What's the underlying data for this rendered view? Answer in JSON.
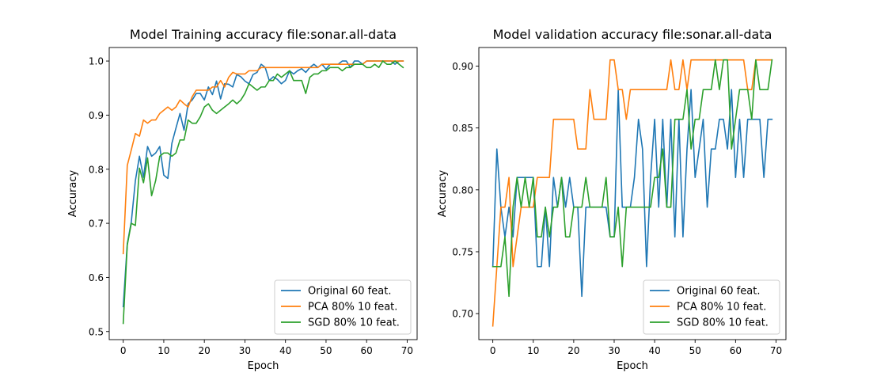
{
  "chart_data": [
    {
      "type": "line",
      "title": "Model Training accuracy file:sonar.all-data",
      "xlabel": "Epoch",
      "ylabel": "Accuracy",
      "xlim": [
        -3.45,
        72.45
      ],
      "ylim": [
        0.485,
        1.025
      ],
      "xticks": [
        0,
        10,
        20,
        30,
        40,
        50,
        60,
        70
      ],
      "yticks": [
        0.5,
        0.6,
        0.7,
        0.8,
        0.9,
        1.0
      ],
      "ytick_labels": [
        "0.5",
        "0.6",
        "0.7",
        "0.8",
        "0.9",
        "1.0"
      ],
      "legend_position": "lower-right",
      "series": [
        {
          "name": "Original 60 feat.",
          "color": "#1f77b4",
          "values": [
            0.546,
            0.662,
            0.703,
            0.779,
            0.824,
            0.785,
            0.842,
            0.824,
            0.83,
            0.842,
            0.789,
            0.783,
            0.848,
            0.876,
            0.903,
            0.872,
            0.921,
            0.928,
            0.94,
            0.94,
            0.928,
            0.952,
            0.938,
            0.963,
            0.93,
            0.958,
            0.957,
            0.952,
            0.975,
            0.971,
            0.963,
            0.958,
            0.975,
            0.979,
            0.994,
            0.988,
            0.964,
            0.971,
            0.966,
            0.958,
            0.964,
            0.982,
            0.976,
            0.982,
            0.986,
            0.979,
            0.988,
            0.994,
            0.988,
            0.994,
            0.985,
            0.994,
            0.994,
            0.994,
            1.0,
            1.0,
            0.988,
            1.0,
            1.0,
            0.994,
            1.0,
            1.0,
            1.0,
            1.0,
            1.0,
            1.0,
            1.0,
            0.994,
            1.0,
            1.0
          ]
        },
        {
          "name": "PCA 80% 10 feat.",
          "color": "#ff7f0e",
          "values": [
            0.644,
            0.807,
            0.836,
            0.866,
            0.861,
            0.891,
            0.885,
            0.891,
            0.891,
            0.903,
            0.909,
            0.915,
            0.909,
            0.915,
            0.928,
            0.921,
            0.915,
            0.934,
            0.946,
            0.946,
            0.946,
            0.946,
            0.952,
            0.952,
            0.964,
            0.952,
            0.97,
            0.979,
            0.976,
            0.976,
            0.976,
            0.982,
            0.982,
            0.982,
            0.988,
            0.988,
            0.988,
            0.988,
            0.988,
            0.988,
            0.988,
            0.988,
            0.988,
            0.988,
            0.988,
            0.988,
            0.988,
            0.988,
            0.988,
            0.994,
            0.994,
            0.994,
            0.994,
            0.994,
            0.994,
            0.994,
            0.994,
            0.994,
            0.994,
            0.994,
            1.0,
            1.0,
            1.0,
            1.0,
            1.0,
            1.0,
            1.0,
            1.0,
            1.0,
            1.0
          ]
        },
        {
          "name": "SGD 80% 10 feat.",
          "color": "#2ca02c",
          "values": [
            0.515,
            0.66,
            0.7,
            0.696,
            0.802,
            0.775,
            0.821,
            0.751,
            0.779,
            0.824,
            0.83,
            0.83,
            0.824,
            0.83,
            0.854,
            0.854,
            0.891,
            0.885,
            0.885,
            0.897,
            0.915,
            0.921,
            0.909,
            0.903,
            0.909,
            0.915,
            0.921,
            0.928,
            0.921,
            0.928,
            0.94,
            0.958,
            0.952,
            0.946,
            0.952,
            0.952,
            0.964,
            0.964,
            0.976,
            0.97,
            0.976,
            0.982,
            0.964,
            0.964,
            0.964,
            0.94,
            0.97,
            0.976,
            0.976,
            0.982,
            0.982,
            0.988,
            0.988,
            0.988,
            0.982,
            0.988,
            0.988,
            0.994,
            0.994,
            0.994,
            0.988,
            0.988,
            0.994,
            0.988,
            1.0,
            0.994,
            0.994,
            1.0,
            0.994,
            0.988
          ]
        }
      ]
    },
    {
      "type": "line",
      "title": "Model validation accuracy file:sonar.all-data",
      "xlabel": "Epoch",
      "ylabel": "Accuracy",
      "xlim": [
        -3.45,
        72.45
      ],
      "ylim": [
        0.679,
        0.915
      ],
      "xticks": [
        0,
        10,
        20,
        30,
        40,
        50,
        60,
        70
      ],
      "yticks": [
        0.7,
        0.75,
        0.8,
        0.85,
        0.9
      ],
      "ytick_labels": [
        "0.70",
        "0.75",
        "0.80",
        "0.85",
        "0.90"
      ],
      "legend_position": "lower-right",
      "series": [
        {
          "name": "Original 60 feat.",
          "color": "#1f77b4",
          "values": [
            0.738,
            0.833,
            0.786,
            0.762,
            0.786,
            0.762,
            0.81,
            0.81,
            0.81,
            0.81,
            0.81,
            0.738,
            0.738,
            0.786,
            0.738,
            0.81,
            0.786,
            0.81,
            0.786,
            0.81,
            0.786,
            0.786,
            0.714,
            0.786,
            0.786,
            0.786,
            0.786,
            0.786,
            0.786,
            0.762,
            0.762,
            0.881,
            0.786,
            0.786,
            0.786,
            0.81,
            0.857,
            0.833,
            0.738,
            0.81,
            0.857,
            0.786,
            0.857,
            0.786,
            0.857,
            0.762,
            0.857,
            0.762,
            0.833,
            0.881,
            0.81,
            0.833,
            0.857,
            0.786,
            0.833,
            0.833,
            0.857,
            0.857,
            0.833,
            0.881,
            0.81,
            0.857,
            0.81,
            0.857,
            0.857,
            0.857,
            0.857,
            0.81,
            0.857,
            0.857
          ]
        },
        {
          "name": "PCA 80% 10 feat.",
          "color": "#ff7f0e",
          "values": [
            0.69,
            0.738,
            0.786,
            0.786,
            0.81,
            0.738,
            0.762,
            0.786,
            0.786,
            0.786,
            0.786,
            0.81,
            0.81,
            0.81,
            0.81,
            0.857,
            0.857,
            0.857,
            0.857,
            0.857,
            0.857,
            0.833,
            0.833,
            0.833,
            0.881,
            0.857,
            0.857,
            0.857,
            0.857,
            0.905,
            0.905,
            0.881,
            0.881,
            0.857,
            0.881,
            0.881,
            0.881,
            0.881,
            0.881,
            0.881,
            0.881,
            0.881,
            0.881,
            0.881,
            0.905,
            0.881,
            0.881,
            0.905,
            0.881,
            0.905,
            0.905,
            0.905,
            0.905,
            0.905,
            0.905,
            0.905,
            0.905,
            0.905,
            0.905,
            0.905,
            0.905,
            0.905,
            0.905,
            0.881,
            0.881,
            0.905,
            0.905,
            0.905,
            0.905,
            0.905
          ]
        },
        {
          "name": "SGD 80% 10 feat.",
          "color": "#2ca02c",
          "values": [
            0.738,
            0.738,
            0.738,
            0.762,
            0.714,
            0.786,
            0.81,
            0.786,
            0.81,
            0.786,
            0.81,
            0.762,
            0.762,
            0.786,
            0.762,
            0.786,
            0.786,
            0.81,
            0.762,
            0.762,
            0.786,
            0.786,
            0.786,
            0.81,
            0.786,
            0.786,
            0.786,
            0.786,
            0.81,
            0.762,
            0.762,
            0.786,
            0.738,
            0.786,
            0.786,
            0.786,
            0.786,
            0.786,
            0.786,
            0.786,
            0.81,
            0.81,
            0.833,
            0.786,
            0.786,
            0.857,
            0.857,
            0.857,
            0.881,
            0.833,
            0.857,
            0.857,
            0.881,
            0.881,
            0.881,
            0.905,
            0.881,
            0.905,
            0.905,
            0.833,
            0.857,
            0.881,
            0.881,
            0.881,
            0.857,
            0.905,
            0.881,
            0.881,
            0.881,
            0.905
          ]
        }
      ]
    }
  ]
}
